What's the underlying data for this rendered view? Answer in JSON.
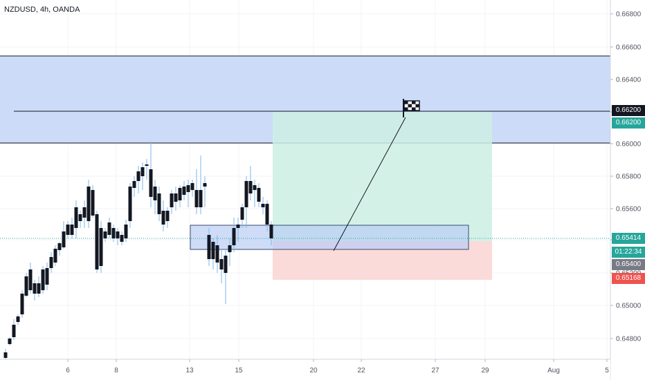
{
  "header": {
    "symbol_label": "NZDUSD, 4h, OANDA"
  },
  "price_axis": {
    "ticks": [
      "0.66800",
      "0.66600",
      "0.66400",
      "0.66200",
      "0.66000",
      "0.65800",
      "0.65600",
      "0.65400",
      "0.65200",
      "0.65000",
      "0.64800"
    ]
  },
  "time_axis": {
    "ticks": [
      "6",
      "8",
      "13",
      "15",
      "20",
      "22",
      "27",
      "29",
      "Aug",
      "5"
    ]
  },
  "badges": {
    "horizontal_line_price": "0.66200",
    "target_price": "0.66200",
    "last_price": "0.65414",
    "countdown": "01:22:34",
    "entry_price": "0.65400",
    "stop_price": "0.65168"
  },
  "colors": {
    "zone_fill": "#c9d9f8",
    "zone_border": "#131722",
    "profit_fill": "#cdeee4",
    "loss_fill": "#fbd6d6",
    "entry_box_fill": "#b9cdf5",
    "candle_up": "#131722",
    "candle_down": "#131722",
    "wick": "#7fb6ea",
    "last_price_line": "#26a69a",
    "target_badge": "#26a69a",
    "stop_badge": "#ef5350",
    "entry_badge": "#787b86",
    "hline_badge": "#131722"
  },
  "icons": {
    "target_marker": "checkered-flag-icon"
  }
}
